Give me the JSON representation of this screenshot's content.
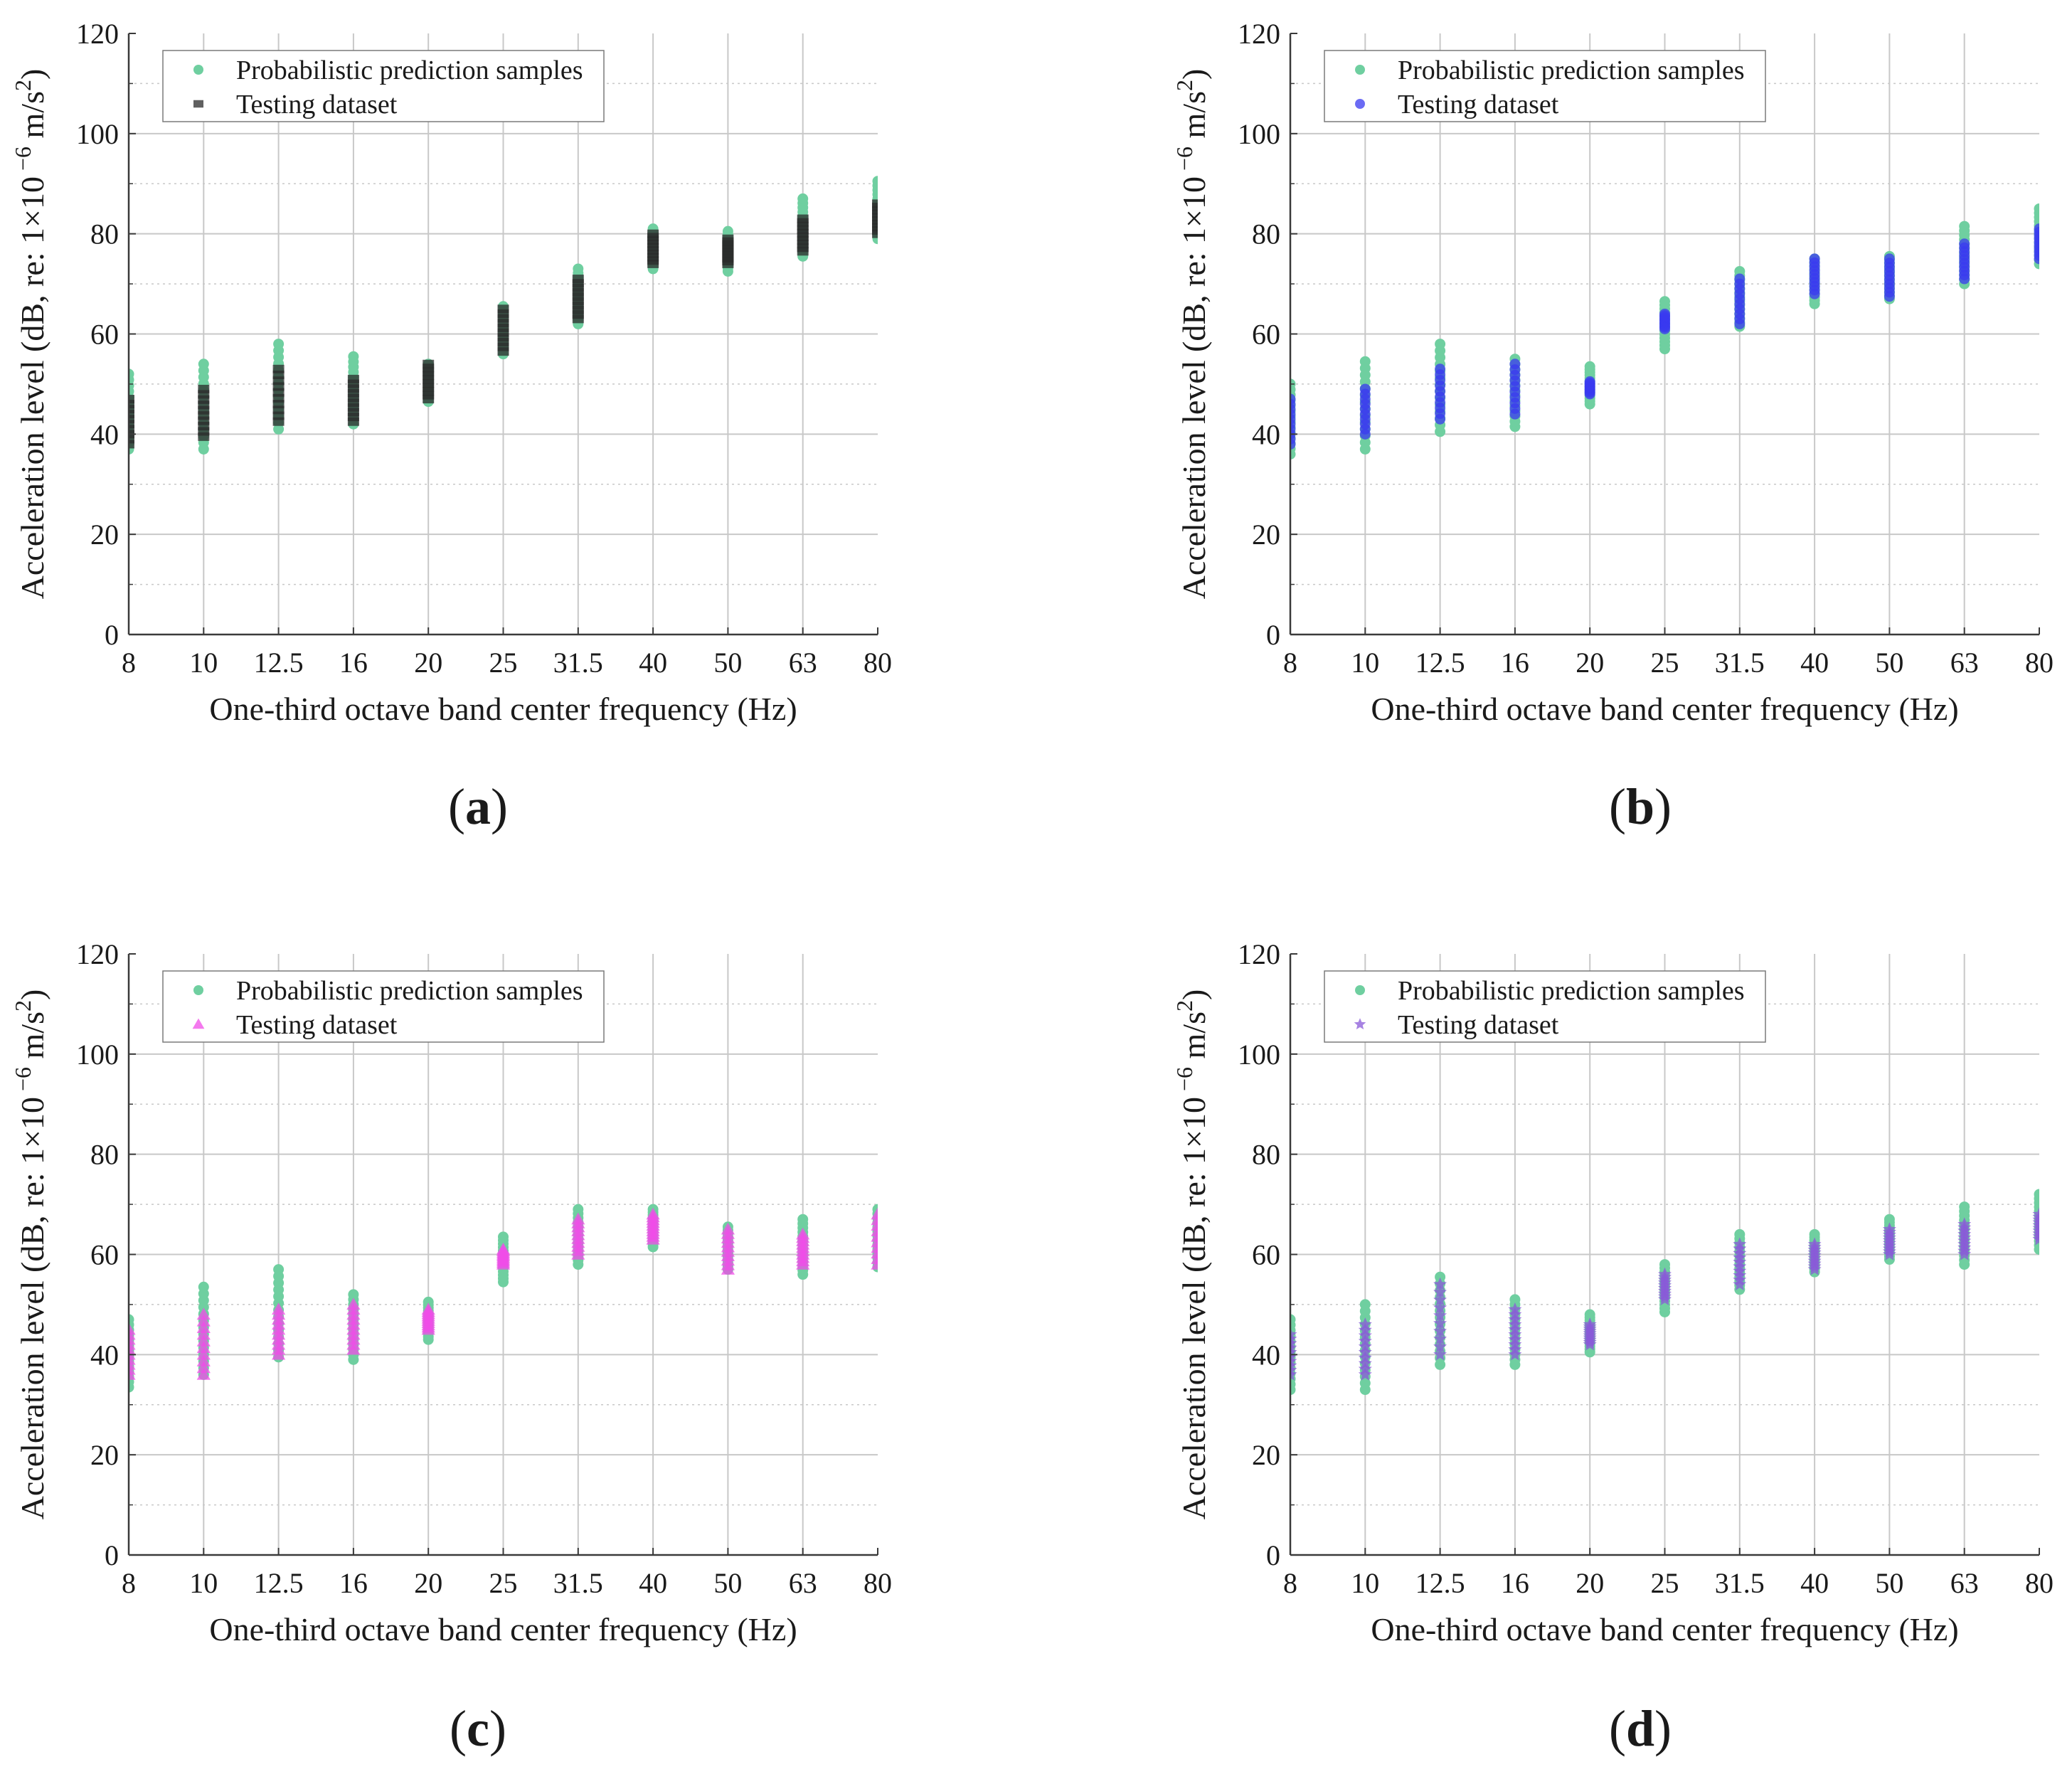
{
  "figure": {
    "panel_labels": [
      "(a)",
      "(b)",
      "(c)",
      "(d)"
    ]
  },
  "chart_data": [
    {
      "panel": "(a)",
      "type": "scatter",
      "categories": [
        "8",
        "10",
        "12.5",
        "16",
        "20",
        "25",
        "31.5",
        "40",
        "50",
        "63",
        "80"
      ],
      "xlabel": "One-third octave band center frequency (Hz)",
      "ylabel_prefix": "Acceleration level (dB, re: 1×10",
      "ylabel_sup1": "−6",
      "ylabel_mid": " m/s",
      "ylabel_sup2": "2",
      "ylabel_suffix": ")",
      "ylim": [
        0,
        120
      ],
      "yticks": [
        0,
        20,
        40,
        60,
        80,
        100,
        120
      ],
      "grid": true,
      "legend_position": "top-left",
      "series": [
        {
          "name": "Probabilistic prediction samples",
          "marker": "circle",
          "color": "#6fcfa0",
          "ranges": [
            [
              37,
              52
            ],
            [
              37,
              54
            ],
            [
              41,
              58
            ],
            [
              42,
              55.5
            ],
            [
              46.5,
              54
            ],
            [
              56,
              65.5
            ],
            [
              62,
              73
            ],
            [
              73,
              81
            ],
            [
              72.5,
              80.5
            ],
            [
              75.5,
              87
            ],
            [
              79,
              90.5
            ]
          ]
        },
        {
          "name": "Testing dataset",
          "marker": "square",
          "color": "#2b2b2b",
          "ranges": [
            [
              38,
              47
            ],
            [
              39.5,
              49
            ],
            [
              42.5,
              53
            ],
            [
              42.5,
              51
            ],
            [
              47,
              54
            ],
            [
              56.5,
              65
            ],
            [
              63,
              71
            ],
            [
              74,
              80
            ],
            [
              74,
              79
            ],
            [
              76.5,
              83
            ],
            [
              80,
              86
            ]
          ]
        }
      ]
    },
    {
      "panel": "(b)",
      "type": "scatter",
      "categories": [
        "8",
        "10",
        "12.5",
        "16",
        "20",
        "25",
        "31.5",
        "40",
        "50",
        "63",
        "80"
      ],
      "xlabel": "One-third octave band center frequency (Hz)",
      "ylabel_prefix": "Acceleration level (dB, re: 1×10",
      "ylabel_sup1": "−6",
      "ylabel_mid": " m/s",
      "ylabel_sup2": "2",
      "ylabel_suffix": ")",
      "ylim": [
        0,
        120
      ],
      "yticks": [
        0,
        20,
        40,
        60,
        80,
        100,
        120
      ],
      "grid": true,
      "legend_position": "top-left",
      "series": [
        {
          "name": "Probabilistic prediction samples",
          "marker": "circle",
          "color": "#6fcfa0",
          "ranges": [
            [
              36,
              50
            ],
            [
              37,
              54.5
            ],
            [
              40.5,
              58
            ],
            [
              41.5,
              55
            ],
            [
              46,
              53.5
            ],
            [
              57,
              66.5
            ],
            [
              61.5,
              72.5
            ],
            [
              66,
              75
            ],
            [
              67,
              75.5
            ],
            [
              70,
              81.5
            ],
            [
              74,
              85
            ]
          ]
        },
        {
          "name": "Testing dataset",
          "marker": "circle",
          "color": "#3a3af0",
          "ranges": [
            [
              38,
              47
            ],
            [
              40,
              49
            ],
            [
              43,
              53
            ],
            [
              44,
              54
            ],
            [
              48,
              50.5
            ],
            [
              61,
              64
            ],
            [
              62,
              71
            ],
            [
              68,
              75
            ],
            [
              67.5,
              75
            ],
            [
              71,
              78
            ],
            [
              75,
              81
            ]
          ]
        }
      ]
    },
    {
      "panel": "(c)",
      "type": "scatter",
      "categories": [
        "8",
        "10",
        "12.5",
        "16",
        "20",
        "25",
        "31.5",
        "40",
        "50",
        "63",
        "80"
      ],
      "xlabel": "One-third octave band center frequency (Hz)",
      "ylabel_prefix": "Acceleration level (dB, re: 1×10",
      "ylabel_sup1": "−6",
      "ylabel_mid": " m/s",
      "ylabel_sup2": "2",
      "ylabel_suffix": ")",
      "ylim": [
        0,
        120
      ],
      "yticks": [
        0,
        20,
        40,
        60,
        80,
        100,
        120
      ],
      "grid": true,
      "legend_position": "top-left",
      "series": [
        {
          "name": "Probabilistic prediction samples",
          "marker": "circle",
          "color": "#6fcfa0",
          "ranges": [
            [
              33.5,
              47
            ],
            [
              36,
              53.5
            ],
            [
              39.5,
              57
            ],
            [
              39,
              52
            ],
            [
              43,
              50.5
            ],
            [
              54.5,
              63.5
            ],
            [
              58,
              69
            ],
            [
              61.5,
              69
            ],
            [
              57,
              65.5
            ],
            [
              56,
              67
            ],
            [
              57.5,
              69
            ]
          ]
        },
        {
          "name": "Testing dataset",
          "marker": "triangle",
          "color": "#f04ce8",
          "ranges": [
            [
              36,
              45
            ],
            [
              36,
              48
            ],
            [
              40,
              49
            ],
            [
              41,
              50
            ],
            [
              45,
              49
            ],
            [
              58,
              61
            ],
            [
              60,
              67
            ],
            [
              63,
              68
            ],
            [
              57,
              65
            ],
            [
              58,
              64
            ],
            [
              58,
              68
            ]
          ]
        }
      ]
    },
    {
      "panel": "(d)",
      "type": "scatter",
      "categories": [
        "8",
        "10",
        "12.5",
        "16",
        "20",
        "25",
        "31.5",
        "40",
        "50",
        "63",
        "80"
      ],
      "xlabel": "One-third octave band center frequency (Hz)",
      "ylabel_prefix": "Acceleration level (dB, re: 1×10",
      "ylabel_sup1": "−6",
      "ylabel_mid": " m/s",
      "ylabel_sup2": "2",
      "ylabel_suffix": ")",
      "ylim": [
        0,
        120
      ],
      "yticks": [
        0,
        20,
        40,
        60,
        80,
        100,
        120
      ],
      "grid": true,
      "legend_position": "top-left",
      "series": [
        {
          "name": "Probabilistic prediction samples",
          "marker": "circle",
          "color": "#6fcfa0",
          "ranges": [
            [
              33,
              47
            ],
            [
              33,
              50
            ],
            [
              38,
              55.5
            ],
            [
              38,
              51
            ],
            [
              40.5,
              48
            ],
            [
              48.5,
              58
            ],
            [
              53,
              64
            ],
            [
              56.5,
              64
            ],
            [
              59,
              67
            ],
            [
              58,
              69.5
            ],
            [
              61,
              72
            ]
          ]
        },
        {
          "name": "Testing dataset",
          "marker": "star",
          "color": "#8a5ad8",
          "ranges": [
            [
              36,
              44
            ],
            [
              36,
              46
            ],
            [
              40,
              54
            ],
            [
              40,
              49
            ],
            [
              42,
              46
            ],
            [
              51,
              56
            ],
            [
              54,
              62
            ],
            [
              57,
              62
            ],
            [
              60,
              65
            ],
            [
              60,
              66
            ],
            [
              63,
              68
            ]
          ]
        }
      ]
    }
  ]
}
